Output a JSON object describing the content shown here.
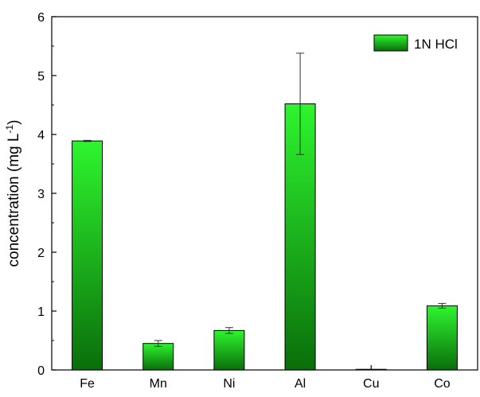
{
  "chart_data": {
    "type": "bar",
    "categories": [
      "Fe",
      "Mn",
      "Ni",
      "Al",
      "Cu",
      "Co"
    ],
    "series": [
      {
        "name": "1N HCl",
        "values": [
          3.89,
          0.45,
          0.67,
          4.52,
          0.01,
          1.09
        ],
        "errors": [
          0.01,
          0.05,
          0.05,
          0.86,
          0.0,
          0.04
        ]
      }
    ],
    "ylabel": {
      "base": "concentration (mg L",
      "superscript": "-1",
      "close": ")"
    },
    "ylim": [
      0,
      6
    ],
    "yticks": [
      "0",
      "1",
      "2",
      "3",
      "4",
      "5",
      "6"
    ],
    "grid": false,
    "legend_position": "top-right",
    "colors": {
      "bar_top": "#2ef52e",
      "bar_bottom": "#0a6e0a",
      "bar_outline": "#000000",
      "axis": "#000000"
    }
  }
}
